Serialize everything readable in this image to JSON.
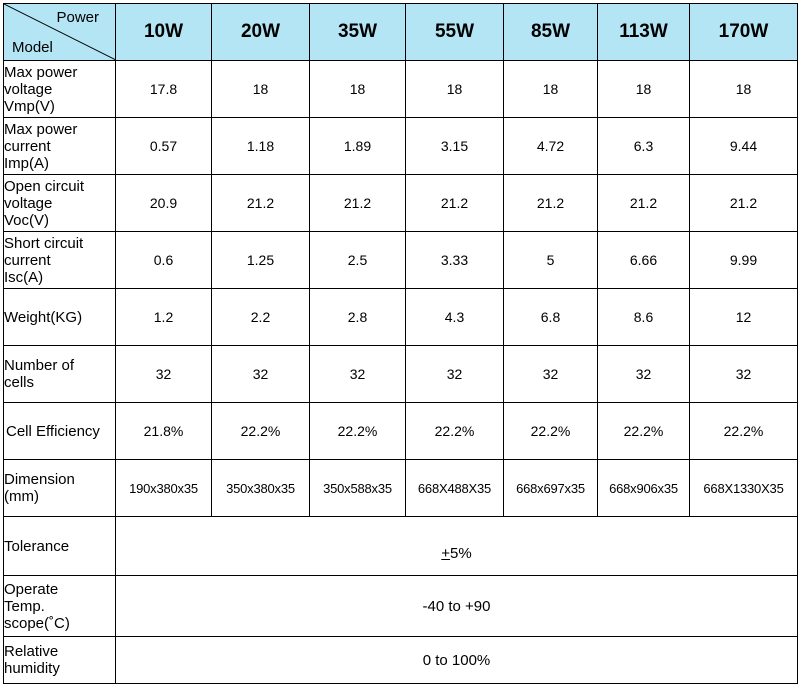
{
  "corner": {
    "top": "Power",
    "bottom": "Model"
  },
  "models": [
    "10W",
    "20W",
    "35W",
    "55W",
    "85W",
    "113W",
    "170W"
  ],
  "rows": [
    {
      "label": [
        "Max power",
        "voltage",
        "Vmp(V)"
      ],
      "values": [
        "17.8",
        "18",
        "18",
        "18",
        "18",
        "18",
        "18"
      ]
    },
    {
      "label": [
        "Max power",
        "current",
        "Imp(A)"
      ],
      "values": [
        "0.57",
        "1.18",
        "1.89",
        "3.15",
        "4.72",
        "6.3",
        "9.44"
      ]
    },
    {
      "label": [
        "Open circuit",
        "voltage",
        "Voc(V)"
      ],
      "values": [
        "20.9",
        "21.2",
        "21.2",
        "21.2",
        "21.2",
        "21.2",
        "21.2"
      ]
    },
    {
      "label": [
        "Short circuit",
        "current",
        "Isc(A)"
      ],
      "values": [
        "0.6",
        "1.25",
        "2.5",
        "3.33",
        "5",
        "6.66",
        "9.99"
      ]
    },
    {
      "label": [
        "Weight(KG)"
      ],
      "values": [
        "1.2",
        "2.2",
        "2.8",
        "4.3",
        "6.8",
        "8.6",
        "12"
      ]
    },
    {
      "label": [
        "Number of",
        "cells"
      ],
      "values": [
        "32",
        "32",
        "32",
        "32",
        "32",
        "32",
        "32"
      ]
    },
    {
      "label": [
        "Cell Efficiency"
      ],
      "values": [
        "21.8%",
        "22.2%",
        "22.2%",
        "22.2%",
        "22.2%",
        "22.2%",
        "22.2%"
      ]
    },
    {
      "label": [
        "Dimension",
        "(mm)"
      ],
      "values": [
        "190x380x35",
        "350x380x35",
        "350x588x35",
        "668X488X35",
        "668x697x35",
        "668x906x35",
        "668X1330X35"
      ]
    }
  ],
  "span_rows": [
    {
      "label": [
        "Tolerance"
      ],
      "value_pm": "+",
      "value_rest": "5%"
    },
    {
      "label": [
        "Operate",
        "Temp.",
        "scope(˚C)"
      ],
      "value_pm": "",
      "value_rest": "-40 to +90"
    },
    {
      "label": [
        "Relative",
        "humidity"
      ],
      "value_pm": "",
      "value_rest": "0 to 100%"
    }
  ]
}
